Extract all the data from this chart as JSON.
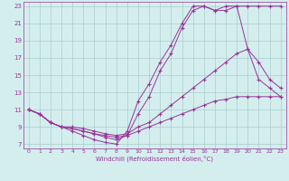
{
  "xlabel": "Windchill (Refroidissement éolien,°C)",
  "background_color": "#d4eeee",
  "grid_color": "#aacccc",
  "line_color": "#993399",
  "xlim": [
    -0.5,
    23.5
  ],
  "ylim": [
    6.5,
    23.5
  ],
  "yticks": [
    7,
    9,
    11,
    13,
    15,
    17,
    19,
    21,
    23
  ],
  "xticks": [
    0,
    1,
    2,
    3,
    4,
    5,
    6,
    7,
    8,
    9,
    10,
    11,
    12,
    13,
    14,
    15,
    16,
    17,
    18,
    19,
    20,
    21,
    22,
    23
  ],
  "series": [
    {
      "x": [
        0,
        1,
        2,
        3,
        4,
        5,
        6,
        7,
        8,
        9,
        10,
        11,
        12,
        13,
        14,
        15,
        16,
        17,
        18,
        19,
        20,
        21,
        22,
        23
      ],
      "y": [
        11,
        10.5,
        9.5,
        9.0,
        8.5,
        8.0,
        7.5,
        7.2,
        7.0,
        8.5,
        12.0,
        14.0,
        16.5,
        18.5,
        21.0,
        23.0,
        23.0,
        22.5,
        23.0,
        23.0,
        23.0,
        23.0,
        23.0,
        23.0
      ]
    },
    {
      "x": [
        0,
        1,
        2,
        3,
        4,
        5,
        6,
        7,
        8,
        9,
        10,
        11,
        12,
        13,
        14,
        15,
        16,
        17,
        18,
        19,
        20,
        21,
        22,
        23
      ],
      "y": [
        11,
        10.5,
        9.5,
        9.0,
        8.8,
        8.5,
        8.2,
        7.8,
        7.5,
        8.0,
        10.5,
        12.5,
        15.5,
        17.5,
        20.5,
        22.5,
        23.0,
        22.5,
        22.5,
        23.0,
        18.0,
        14.5,
        13.5,
        12.5
      ]
    },
    {
      "x": [
        0,
        1,
        2,
        3,
        4,
        5,
        6,
        7,
        8,
        9,
        10,
        11,
        12,
        13,
        14,
        15,
        16,
        17,
        18,
        19,
        20,
        21,
        22,
        23
      ],
      "y": [
        11,
        10.5,
        9.5,
        9.0,
        9.0,
        8.8,
        8.5,
        8.2,
        8.0,
        8.2,
        9.0,
        9.5,
        10.5,
        11.5,
        12.5,
        13.5,
        14.5,
        15.5,
        16.5,
        17.5,
        18.0,
        16.5,
        14.5,
        13.5
      ]
    },
    {
      "x": [
        0,
        1,
        2,
        3,
        4,
        5,
        6,
        7,
        8,
        9,
        10,
        11,
        12,
        13,
        14,
        15,
        16,
        17,
        18,
        19,
        20,
        21,
        22,
        23
      ],
      "y": [
        11,
        10.5,
        9.5,
        9.0,
        8.8,
        8.5,
        8.2,
        8.0,
        7.8,
        8.0,
        8.5,
        9.0,
        9.5,
        10.0,
        10.5,
        11.0,
        11.5,
        12.0,
        12.2,
        12.5,
        12.5,
        12.5,
        12.5,
        12.5
      ]
    }
  ]
}
